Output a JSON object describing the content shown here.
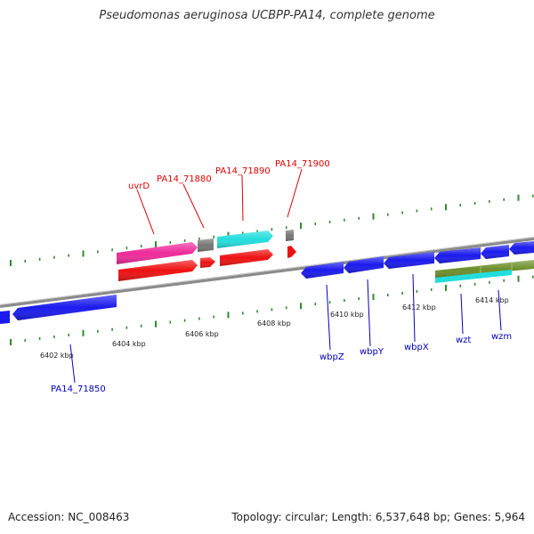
{
  "title": "Pseudomonas aeruginosa UCBPP-PA14, complete genome",
  "footer": {
    "accession": "Accession: NC_008463",
    "summary": "Topology: circular; Length: 6,537,648 bp; Genes: 5,964"
  },
  "colors": {
    "backbone": "#888888",
    "forward_ticks": "#2e8b2e",
    "blue_gene": "#1a1aee",
    "red_gene": "#ee1111",
    "magenta_gene": "#ee2a9a",
    "cyan_gene": "#22dddd",
    "gray_gene": "#777777",
    "olive_gene": "#6d8e2a",
    "red_label": "#dd0000",
    "blue_label": "#0000bb"
  },
  "scale_labels": [
    "6402 kbp",
    "6404 kbp",
    "6406 kbp",
    "6408 kbp",
    "6410 kbp",
    "6412 kbp",
    "6414 kbp"
  ],
  "forward_gene_labels": [
    "uvrD",
    "PA14_71880",
    "PA14_71890",
    "PA14_71900"
  ],
  "reverse_gene_labels": [
    "PA14_71850",
    "wbpZ",
    "wbpY",
    "wbpX",
    "wzt",
    "wzm"
  ]
}
